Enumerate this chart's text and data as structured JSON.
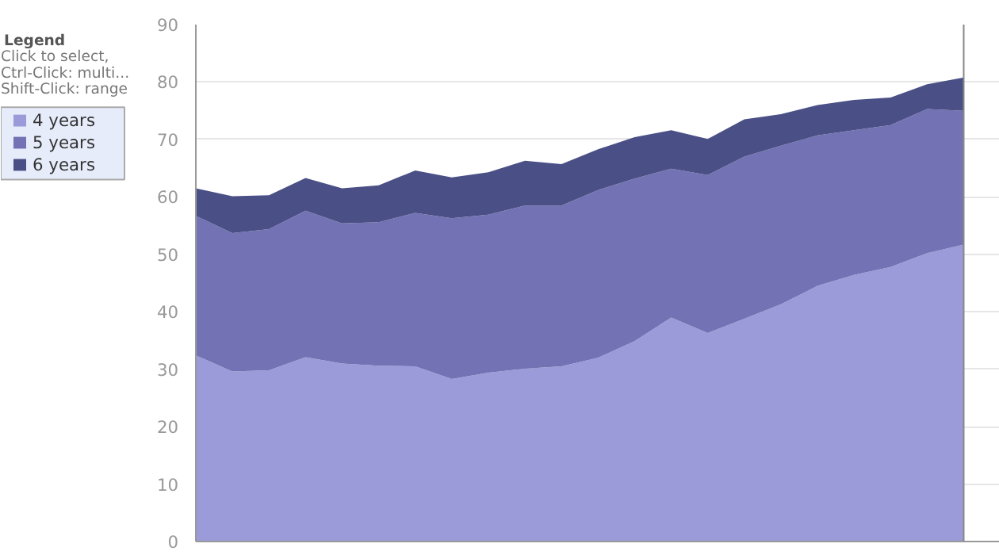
{
  "chart_data": {
    "type": "area",
    "stacked": true,
    "legend_title": "Legend",
    "annotations": [
      "Click to select,",
      "Ctrl-Click: multi...",
      "Shift-Click: range"
    ],
    "categories": [
      null,
      null,
      null,
      null,
      null,
      null,
      null,
      null,
      null,
      null,
      null,
      null,
      null,
      null,
      null,
      null,
      null,
      null,
      null,
      null,
      null,
      null
    ],
    "series": [
      {
        "name": "4 years",
        "color": "#9b9bda",
        "values": [
          32.4,
          29.6,
          29.8,
          32.1,
          31.0,
          30.6,
          30.5,
          28.3,
          29.4,
          30.1,
          30.5,
          32.0,
          34.9,
          39.0,
          36.3,
          38.8,
          41.3,
          44.5,
          46.4,
          47.8,
          50.2,
          51.7
        ]
      },
      {
        "name": "5 years",
        "color": "#7272b4",
        "values": [
          24.3,
          24.1,
          24.6,
          25.5,
          24.4,
          25.0,
          26.7,
          28.0,
          27.5,
          28.4,
          28.0,
          29.2,
          28.3,
          25.9,
          27.5,
          28.2,
          27.6,
          26.2,
          25.2,
          24.7,
          25.1,
          23.3
        ]
      },
      {
        "name": "6 years",
        "color": "#4a5086",
        "values": [
          4.8,
          6.4,
          5.9,
          5.7,
          6.1,
          6.4,
          7.4,
          7.1,
          7.4,
          7.8,
          7.2,
          7.1,
          7.2,
          6.7,
          6.3,
          6.5,
          5.5,
          5.3,
          5.3,
          4.8,
          4.3,
          5.8
        ]
      }
    ],
    "ylim": [
      0,
      90
    ],
    "yticks": [
      0,
      10,
      20,
      30,
      40,
      50,
      60,
      70,
      80,
      90
    ],
    "grid": "y",
    "legend": "left"
  }
}
